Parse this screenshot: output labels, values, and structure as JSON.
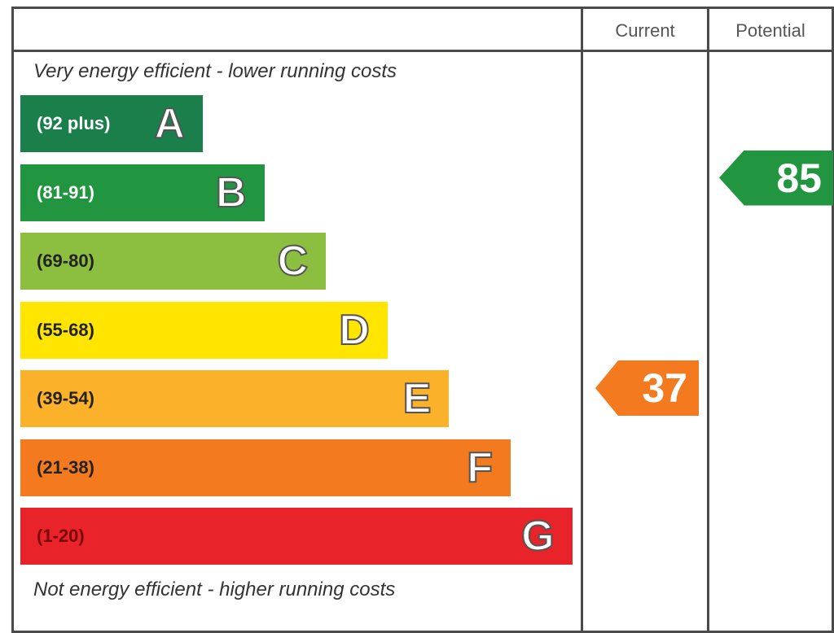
{
  "header": {
    "current_label": "Current",
    "potential_label": "Potential"
  },
  "notes": {
    "top": "Very energy efficient - lower running costs",
    "bottom": "Not energy efficient - higher running costs"
  },
  "colors": {
    "A": "#1a7f4b",
    "B": "#21953f",
    "C": "#8cbf3f",
    "D": "#ffe500",
    "E": "#fbb12a",
    "F": "#f47a20",
    "G": "#e8232a"
  },
  "chart_data": {
    "type": "bar",
    "categories": [
      "A",
      "B",
      "C",
      "D",
      "E",
      "F",
      "G"
    ],
    "ranges": [
      "(92 plus)",
      "(81-91)",
      "(69-80)",
      "(55-68)",
      "(39-54)",
      "(21-38)",
      "(1-20)"
    ],
    "current": {
      "value": "37",
      "band": "F",
      "color": "#f47a20"
    },
    "potential": {
      "value": "85",
      "band": "B",
      "color": "#21953f"
    }
  }
}
